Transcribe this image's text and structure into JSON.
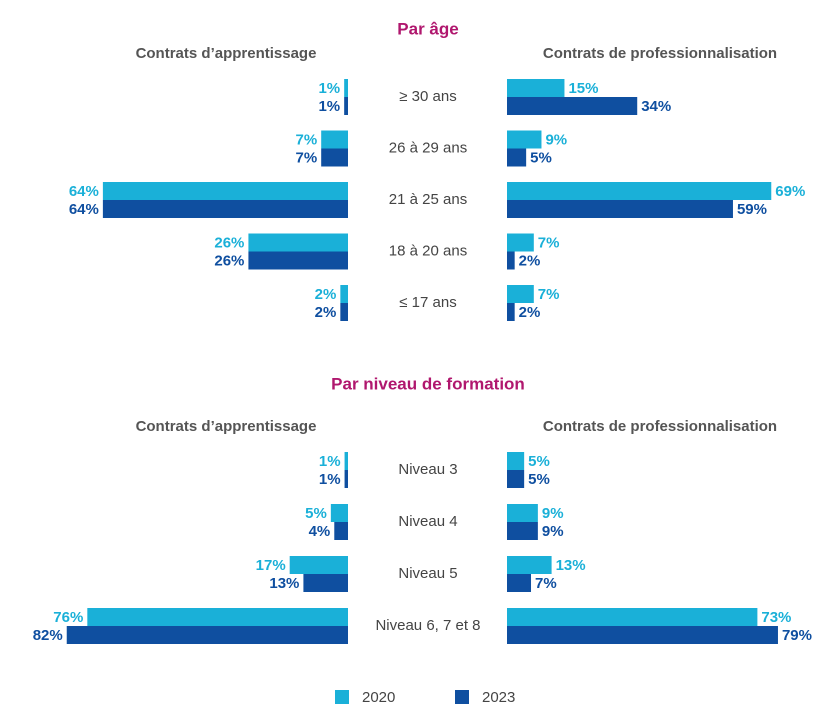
{
  "legend": [
    {
      "name": "2020",
      "color": "#1ab0d8"
    },
    {
      "name": "2023",
      "color": "#0f4fa0"
    }
  ],
  "chart_data": [
    {
      "type": "butterfly-bar",
      "title": "Par âge",
      "left_title": "Contrats d’apprentissage",
      "right_title": "Contrats de professionnalisation",
      "categories": [
        "≥ 30 ans",
        "26 à 29 ans",
        "21 à 25 ans",
        "18 à 20 ans",
        "≤ 17 ans"
      ],
      "series": [
        {
          "left": [
            1,
            7,
            64,
            26,
            2
          ],
          "left_labels": [
            "1%",
            "7%",
            "64%",
            "26%",
            "2%"
          ],
          "right": [
            15,
            9,
            69,
            7,
            7
          ],
          "right_labels": [
            "15%",
            "9%",
            "69%",
            "7%",
            "7%"
          ]
        },
        {
          "left": [
            1,
            7,
            64,
            26,
            2
          ],
          "left_labels": [
            "1%",
            "7%",
            "64%",
            "26%",
            "2%"
          ],
          "right": [
            34,
            5,
            59,
            2,
            2
          ],
          "right_labels": [
            "34%",
            "5%",
            "59%",
            "2%",
            "2%"
          ]
        }
      ]
    },
    {
      "type": "butterfly-bar",
      "title": "Par niveau de formation",
      "left_title": "Contrats d’apprentissage",
      "right_title": "Contrats de professionnalisation",
      "categories": [
        "Niveau 3",
        "Niveau 4",
        "Niveau 5",
        "Niveau 6, 7 et 8"
      ],
      "series": [
        {
          "left": [
            1,
            5,
            17,
            76
          ],
          "left_labels": [
            "1%",
            "5%",
            "17%",
            "76%"
          ],
          "right": [
            5,
            9,
            13,
            73
          ],
          "right_labels": [
            "5%",
            "9%",
            "13%",
            "73%"
          ]
        },
        {
          "left": [
            1,
            4,
            13,
            82
          ],
          "left_labels": [
            "1%",
            "4%",
            "13%",
            "82%"
          ],
          "right": [
            5,
            9,
            7,
            79
          ],
          "right_labels": [
            "5%",
            "9%",
            "7%",
            "79%"
          ]
        }
      ]
    }
  ]
}
